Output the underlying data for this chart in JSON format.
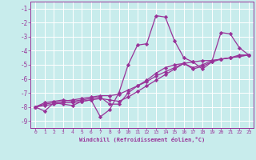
{
  "title": "",
  "xlabel": "Windchill (Refroidissement éolien,°C)",
  "ylabel": "",
  "background_color": "#c8ecec",
  "grid_color": "#b0d8d8",
  "line_color": "#993399",
  "xlim": [
    -0.5,
    23.5
  ],
  "ylim": [
    -9.5,
    -0.5
  ],
  "xticks": [
    0,
    1,
    2,
    3,
    4,
    5,
    6,
    7,
    8,
    9,
    10,
    11,
    12,
    13,
    14,
    15,
    16,
    17,
    18,
    19,
    20,
    21,
    22,
    23
  ],
  "yticks": [
    -1,
    -2,
    -3,
    -4,
    -5,
    -6,
    -7,
    -8,
    -9
  ],
  "series": [
    [
      [
        0,
        -8.0
      ],
      [
        1,
        -8.3
      ],
      [
        2,
        -7.7
      ],
      [
        3,
        -7.8
      ],
      [
        4,
        -7.9
      ],
      [
        5,
        -7.6
      ],
      [
        6,
        -7.5
      ],
      [
        7,
        -8.7
      ],
      [
        8,
        -8.2
      ],
      [
        9,
        -7.0
      ],
      [
        10,
        -5.0
      ],
      [
        11,
        -3.6
      ],
      [
        12,
        -3.5
      ],
      [
        13,
        -1.5
      ],
      [
        14,
        -1.6
      ],
      [
        15,
        -3.3
      ],
      [
        16,
        -4.5
      ],
      [
        17,
        -4.8
      ],
      [
        18,
        -5.3
      ],
      [
        19,
        -4.8
      ],
      [
        20,
        -2.7
      ],
      [
        21,
        -2.8
      ],
      [
        22,
        -3.8
      ],
      [
        23,
        -4.3
      ]
    ],
    [
      [
        0,
        -8.0
      ],
      [
        1,
        -7.7
      ],
      [
        2,
        -7.6
      ],
      [
        3,
        -7.5
      ],
      [
        4,
        -7.6
      ],
      [
        5,
        -7.5
      ],
      [
        6,
        -7.4
      ],
      [
        7,
        -7.3
      ],
      [
        8,
        -7.8
      ],
      [
        9,
        -7.8
      ],
      [
        10,
        -7.0
      ],
      [
        11,
        -6.5
      ],
      [
        12,
        -6.1
      ],
      [
        13,
        -5.6
      ],
      [
        14,
        -5.2
      ],
      [
        15,
        -5.0
      ],
      [
        16,
        -4.9
      ],
      [
        17,
        -5.2
      ],
      [
        18,
        -5.0
      ],
      [
        19,
        -4.7
      ],
      [
        20,
        -4.6
      ],
      [
        21,
        -4.5
      ],
      [
        22,
        -4.3
      ],
      [
        23,
        -4.3
      ]
    ],
    [
      [
        0,
        -8.0
      ],
      [
        1,
        -7.8
      ],
      [
        2,
        -7.7
      ],
      [
        3,
        -7.6
      ],
      [
        4,
        -7.5
      ],
      [
        5,
        -7.4
      ],
      [
        6,
        -7.3
      ],
      [
        7,
        -7.2
      ],
      [
        8,
        -7.2
      ],
      [
        9,
        -7.1
      ],
      [
        10,
        -6.8
      ],
      [
        11,
        -6.5
      ],
      [
        12,
        -6.2
      ],
      [
        13,
        -5.8
      ],
      [
        14,
        -5.5
      ],
      [
        15,
        -5.2
      ],
      [
        16,
        -4.9
      ],
      [
        17,
        -4.8
      ],
      [
        18,
        -4.7
      ],
      [
        19,
        -4.7
      ],
      [
        20,
        -4.6
      ],
      [
        21,
        -4.5
      ],
      [
        22,
        -4.4
      ],
      [
        23,
        -4.3
      ]
    ],
    [
      [
        0,
        -8.0
      ],
      [
        1,
        -7.9
      ],
      [
        2,
        -7.8
      ],
      [
        3,
        -7.7
      ],
      [
        4,
        -7.7
      ],
      [
        5,
        -7.6
      ],
      [
        6,
        -7.5
      ],
      [
        7,
        -7.4
      ],
      [
        8,
        -7.5
      ],
      [
        9,
        -7.6
      ],
      [
        10,
        -7.3
      ],
      [
        11,
        -6.9
      ],
      [
        12,
        -6.5
      ],
      [
        13,
        -6.1
      ],
      [
        14,
        -5.7
      ],
      [
        15,
        -5.3
      ],
      [
        16,
        -4.9
      ],
      [
        17,
        -5.3
      ],
      [
        18,
        -5.1
      ],
      [
        19,
        -4.8
      ],
      [
        20,
        -4.6
      ],
      [
        21,
        -4.5
      ],
      [
        22,
        -4.4
      ],
      [
        23,
        -4.3
      ]
    ]
  ]
}
